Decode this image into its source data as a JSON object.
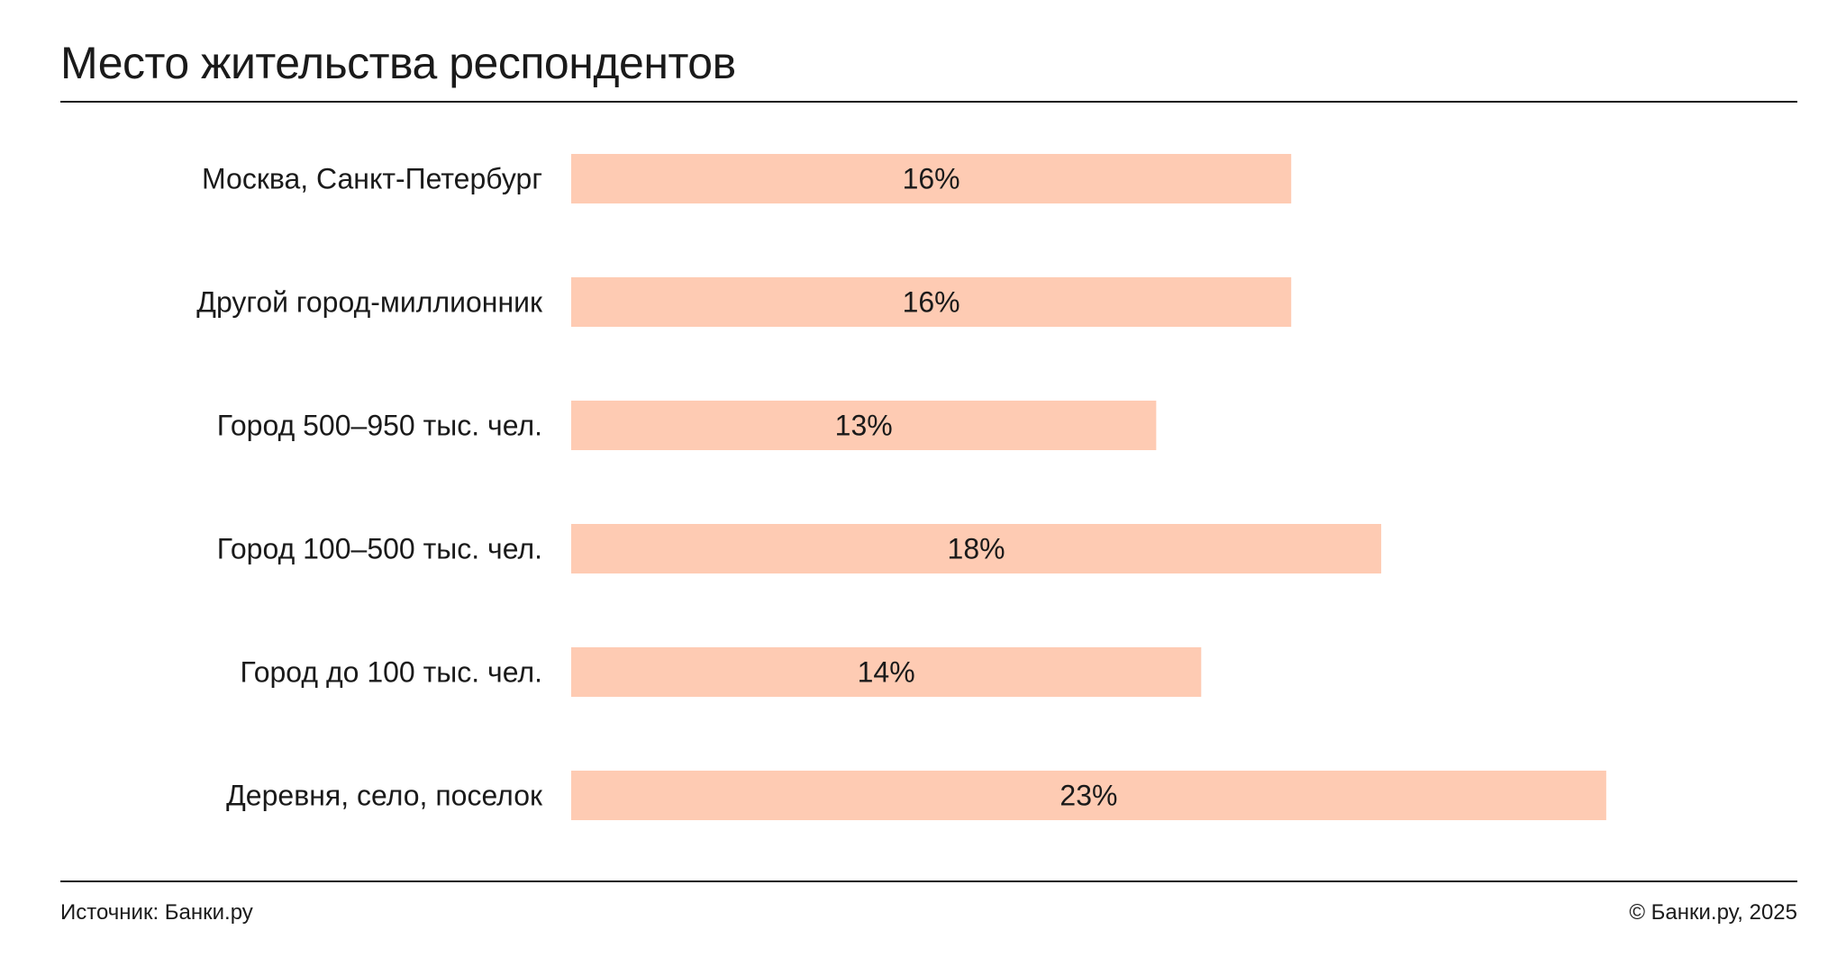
{
  "header": {
    "title": "Место жительства респондентов"
  },
  "footer": {
    "source": "Источник: Банки.ру",
    "copyright": "© Банки.ру, 2025"
  },
  "colors": {
    "bar": "#fecbb3",
    "text": "#1a1a1a",
    "rule": "#1a1a1a"
  },
  "chart_data": {
    "type": "bar",
    "orientation": "horizontal",
    "title": "Место жительства респондентов",
    "categories": [
      "Москва, Санкт-Петербург",
      "Другой город-миллионник",
      "Город 500–950 тыс. чел.",
      "Город 100–500 тыс. чел.",
      "Город до 100 тыс. чел.",
      "Деревня, село, поселок"
    ],
    "values": [
      16,
      16,
      13,
      18,
      14,
      23
    ],
    "value_labels": [
      "16%",
      "16%",
      "13%",
      "18%",
      "14%",
      "23%"
    ],
    "unit": "%",
    "grid": false,
    "legend": "none"
  }
}
